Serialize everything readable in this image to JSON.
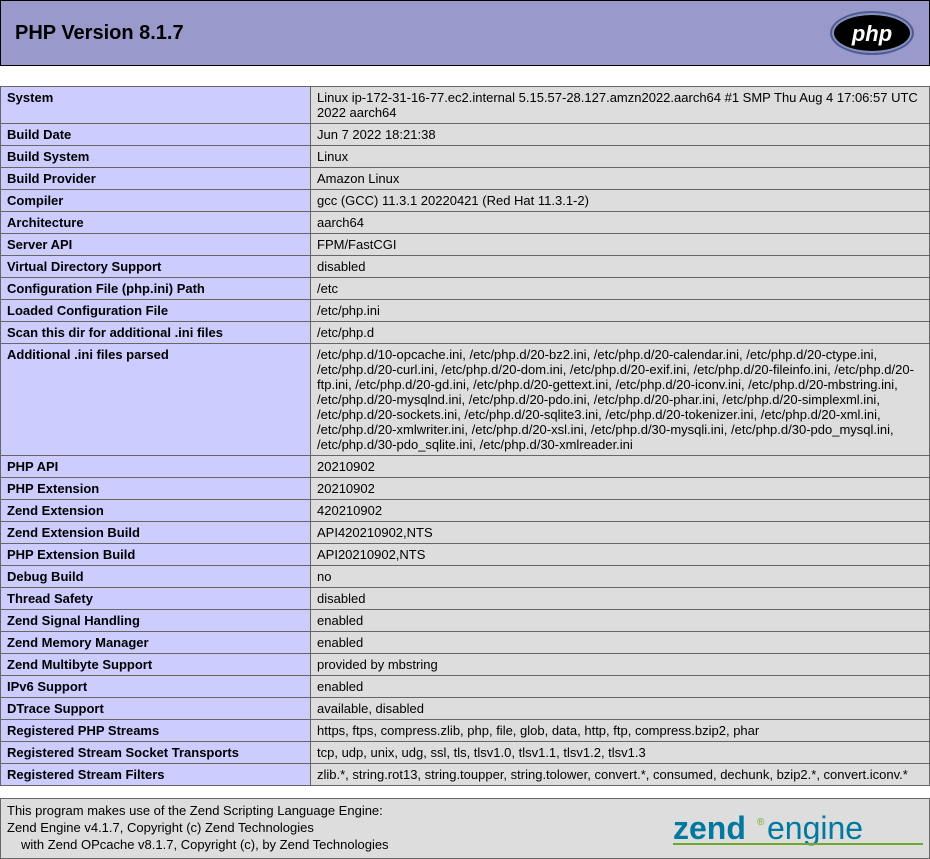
{
  "header": {
    "title": "PHP Version 8.1.7",
    "header_bg": "#9999cc",
    "logo": {
      "bg": "#8892bf",
      "text_color": "#ffffff",
      "outline": "#4f5b93",
      "label": "php"
    }
  },
  "colors": {
    "label_bg": "#ccccff",
    "value_bg": "#dddddd",
    "border": "#666666"
  },
  "rows": [
    {
      "label": "System",
      "value": "Linux ip-172-31-16-77.ec2.internal 5.15.57-28.127.amzn2022.aarch64 #1 SMP Thu Aug 4 17:06:57 UTC 2022 aarch64"
    },
    {
      "label": "Build Date",
      "value": "Jun 7 2022 18:21:38"
    },
    {
      "label": "Build System",
      "value": "Linux"
    },
    {
      "label": "Build Provider",
      "value": "Amazon Linux"
    },
    {
      "label": "Compiler",
      "value": "gcc (GCC) 11.3.1 20220421 (Red Hat 11.3.1-2)"
    },
    {
      "label": "Architecture",
      "value": "aarch64"
    },
    {
      "label": "Server API",
      "value": "FPM/FastCGI"
    },
    {
      "label": "Virtual Directory Support",
      "value": "disabled"
    },
    {
      "label": "Configuration File (php.ini) Path",
      "value": "/etc"
    },
    {
      "label": "Loaded Configuration File",
      "value": "/etc/php.ini"
    },
    {
      "label": "Scan this dir for additional .ini files",
      "value": "/etc/php.d"
    },
    {
      "label": "Additional .ini files parsed",
      "value": "/etc/php.d/10-opcache.ini, /etc/php.d/20-bz2.ini, /etc/php.d/20-calendar.ini, /etc/php.d/20-ctype.ini, /etc/php.d/20-curl.ini, /etc/php.d/20-dom.ini, /etc/php.d/20-exif.ini, /etc/php.d/20-fileinfo.ini, /etc/php.d/20-ftp.ini, /etc/php.d/20-gd.ini, /etc/php.d/20-gettext.ini, /etc/php.d/20-iconv.ini, /etc/php.d/20-mbstring.ini, /etc/php.d/20-mysqlnd.ini, /etc/php.d/20-pdo.ini, /etc/php.d/20-phar.ini, /etc/php.d/20-simplexml.ini, /etc/php.d/20-sockets.ini, /etc/php.d/20-sqlite3.ini, /etc/php.d/20-tokenizer.ini, /etc/php.d/20-xml.ini, /etc/php.d/20-xmlwriter.ini, /etc/php.d/20-xsl.ini, /etc/php.d/30-mysqli.ini, /etc/php.d/30-pdo_mysql.ini, /etc/php.d/30-pdo_sqlite.ini, /etc/php.d/30-xmlreader.ini"
    },
    {
      "label": "PHP API",
      "value": "20210902"
    },
    {
      "label": "PHP Extension",
      "value": "20210902"
    },
    {
      "label": "Zend Extension",
      "value": "420210902"
    },
    {
      "label": "Zend Extension Build",
      "value": "API420210902,NTS"
    },
    {
      "label": "PHP Extension Build",
      "value": "API20210902,NTS"
    },
    {
      "label": "Debug Build",
      "value": "no"
    },
    {
      "label": "Thread Safety",
      "value": "disabled"
    },
    {
      "label": "Zend Signal Handling",
      "value": "enabled"
    },
    {
      "label": "Zend Memory Manager",
      "value": "enabled"
    },
    {
      "label": "Zend Multibyte Support",
      "value": "provided by mbstring"
    },
    {
      "label": "IPv6 Support",
      "value": "enabled"
    },
    {
      "label": "DTrace Support",
      "value": "available, disabled"
    },
    {
      "label": "Registered PHP Streams",
      "value": "https, ftps, compress.zlib, php, file, glob, data, http, ftp, compress.bzip2, phar"
    },
    {
      "label": "Registered Stream Socket Transports",
      "value": "tcp, udp, unix, udg, ssl, tls, tlsv1.0, tlsv1.1, tlsv1.2, tlsv1.3"
    },
    {
      "label": "Registered Stream Filters",
      "value": "zlib.*, string.rot13, string.toupper, string.tolower, convert.*, consumed, dechunk, bzip2.*, convert.iconv.*"
    }
  ],
  "zend": {
    "line1": "This program makes use of the Zend Scripting Language Engine:",
    "line2": "Zend Engine v4.1.7, Copyright (c) Zend Technologies",
    "line3": "with Zend OPcache v8.1.7, Copyright (c), by Zend Technologies",
    "logo_color": "#0078a0",
    "logo_accent": "#6fa82a"
  }
}
